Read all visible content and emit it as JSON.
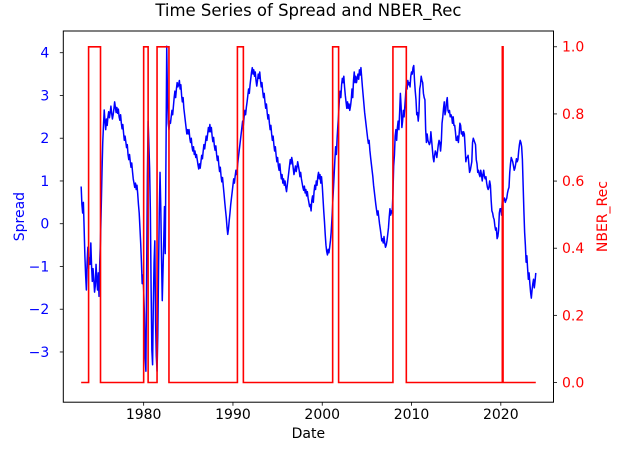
{
  "figure": {
    "background_color": "#ffffff"
  },
  "chart_data": {
    "type": "line",
    "title": "Time Series of Spread and NBER_Rec",
    "xlabel": "Date",
    "ylabel_left": "Spread",
    "ylabel_right": "NBER_Rec",
    "grid": false,
    "legend": "none",
    "colors": {
      "spread_line": "#0000ff",
      "nber_line": "#ff0000",
      "left_tick_text": "#0000ff",
      "right_tick_text": "#ff0000",
      "axis_text": "#000000",
      "spine": "#000000"
    },
    "xlim": [
      1971.0,
      2025.9
    ],
    "ylim_left": [
      -4.175,
      4.508
    ],
    "ylim_right": [
      -0.0587,
      1.047
    ],
    "x_ticks": {
      "values": [
        1980,
        1990,
        2000,
        2010,
        2020
      ],
      "labels": [
        "1980",
        "1990",
        "2000",
        "2010",
        "2020"
      ]
    },
    "y_ticks_left": {
      "values": [
        4,
        3,
        2,
        1,
        0,
        -1,
        -2,
        -3
      ],
      "labels": [
        "4",
        "3",
        "2",
        "1",
        "0",
        "−1",
        "−2",
        "−3"
      ]
    },
    "y_ticks_right": {
      "values": [
        1.0,
        0.8,
        0.6,
        0.4,
        0.2,
        0.0
      ],
      "labels": [
        "1.0",
        "0.8",
        "0.6",
        "0.4",
        "0.2",
        "0.0"
      ]
    },
    "series": [
      {
        "name": "Spread",
        "y_axis": "left",
        "color": "#0000ff",
        "frequency": "monthly",
        "start_year": 1973.0,
        "end_year": 2023.9167,
        "values": [
          0.87,
          0.45,
          0.25,
          0.5,
          -0.1,
          -0.75,
          -1.2,
          -1.55,
          -0.9,
          -0.55,
          -1.05,
          -0.8,
          -0.95,
          -0.45,
          -1.0,
          -1.35,
          -1.05,
          -1.3,
          -1.6,
          -1.45,
          -0.95,
          -1.3,
          -1.55,
          -1.15,
          -1.7,
          -0.9,
          -0.4,
          0.4,
          1.2,
          1.9,
          2.3,
          2.66,
          2.4,
          2.2,
          2.45,
          2.3,
          2.5,
          2.62,
          2.48,
          2.6,
          2.75,
          2.58,
          2.45,
          2.55,
          2.68,
          2.85,
          2.72,
          2.6,
          2.72,
          2.58,
          2.68,
          2.5,
          2.42,
          2.55,
          2.35,
          2.22,
          2.32,
          2.12,
          1.95,
          2.05,
          1.92,
          1.78,
          1.85,
          1.62,
          1.5,
          1.62,
          1.45,
          1.32,
          1.42,
          1.22,
          1.05,
          0.95,
          0.85,
          0.95,
          0.8,
          0.9,
          0.7,
          0.45,
          0.25,
          -0.1,
          -0.45,
          -0.9,
          -1.4,
          -1.2,
          -1.55,
          -2.1,
          -3.1,
          -3.45,
          -1.2,
          1.1,
          2.4,
          1.85,
          1.3,
          0.3,
          -1.5,
          -2.95,
          -3.3,
          -1.9,
          -0.9,
          -0.4,
          -2.3,
          -3.1,
          -3.45,
          -2.6,
          -1.1,
          0.3,
          1.2,
          0.4,
          -0.8,
          -1.8,
          -1.1,
          -0.4,
          0.4,
          -0.7,
          1.6,
          4.15,
          3.0,
          2.35,
          2.2,
          2.4,
          2.35,
          2.5,
          2.65,
          2.55,
          2.75,
          2.95,
          3.1,
          2.95,
          3.15,
          3.3,
          3.2,
          3.25,
          3.35,
          3.15,
          3.25,
          3.0,
          2.85,
          2.95,
          2.7,
          2.55,
          2.4,
          2.25,
          2.1,
          2.2,
          2.1,
          2.2,
          2.0,
          1.9,
          2.0,
          1.8,
          1.7,
          1.8,
          1.62,
          1.7,
          1.55,
          1.62,
          1.5,
          1.38,
          1.28,
          1.4,
          1.3,
          1.45,
          1.6,
          1.52,
          1.7,
          1.85,
          1.75,
          1.9,
          2.05,
          1.95,
          2.1,
          2.25,
          2.15,
          2.32,
          2.15,
          2.25,
          2.05,
          1.92,
          2.02,
          1.82,
          1.72,
          1.82,
          1.62,
          1.48,
          1.58,
          1.38,
          1.22,
          1.32,
          1.12,
          0.98,
          1.08,
          0.88,
          0.7,
          0.5,
          0.32,
          0.15,
          -0.08,
          -0.25,
          -0.12,
          0.08,
          0.25,
          0.45,
          0.6,
          0.75,
          0.9,
          1.05,
          0.95,
          1.12,
          1.25,
          1.15,
          1.32,
          1.5,
          1.65,
          1.8,
          1.95,
          2.1,
          2.25,
          2.4,
          2.3,
          2.5,
          2.65,
          2.55,
          2.72,
          2.85,
          3.0,
          3.15,
          3.05,
          3.25,
          3.4,
          3.55,
          3.65,
          3.5,
          3.6,
          3.45,
          3.55,
          3.35,
          3.22,
          3.35,
          3.5,
          3.4,
          3.55,
          3.35,
          3.2,
          3.3,
          3.1,
          2.95,
          3.05,
          2.85,
          2.7,
          2.8,
          2.6,
          2.45,
          2.55,
          2.35,
          2.2,
          2.3,
          2.1,
          1.95,
          2.05,
          1.85,
          1.7,
          1.8,
          1.6,
          1.45,
          1.55,
          1.35,
          1.25,
          1.4,
          1.2,
          1.05,
          1.15,
          0.95,
          1.05,
          0.9,
          1.0,
          0.85,
          0.75,
          0.9,
          1.05,
          1.2,
          1.35,
          1.5,
          1.4,
          1.55,
          1.45,
          1.3,
          1.15,
          1.25,
          1.35,
          1.22,
          1.32,
          1.45,
          1.35,
          1.25,
          1.1,
          1.2,
          1.05,
          0.95,
          0.85,
          0.78,
          0.88,
          0.72,
          0.8,
          0.65,
          0.75,
          0.6,
          0.5,
          0.4,
          0.45,
          0.3,
          0.55,
          0.65,
          0.5,
          0.75,
          0.9,
          0.8,
          1.0,
          0.9,
          1.1,
          1.2,
          1.05,
          1.15,
          0.95,
          1.1,
          0.9,
          0.6,
          0.3,
          0.05,
          -0.25,
          -0.5,
          -0.65,
          -0.73,
          -0.6,
          -0.68,
          -0.55,
          -0.4,
          -0.2,
          0.1,
          0.45,
          0.8,
          1.15,
          1.5,
          1.8,
          1.62,
          2.0,
          2.3,
          2.55,
          2.9,
          3.1,
          2.95,
          3.25,
          3.4,
          3.3,
          3.45,
          3.2,
          3.0,
          2.85,
          2.7,
          2.85,
          2.7,
          2.8,
          2.65,
          2.75,
          2.9,
          3.15,
          2.95,
          3.35,
          3.55,
          3.3,
          3.45,
          3.3,
          3.4,
          3.5,
          3.38,
          3.6,
          3.48,
          3.65,
          3.42,
          3.2,
          3.0,
          2.8,
          2.6,
          2.45,
          2.3,
          2.15,
          2.0,
          1.88,
          1.95,
          1.72,
          1.55,
          1.4,
          1.25,
          1.1,
          0.9,
          0.75,
          0.6,
          0.45,
          0.32,
          0.2,
          0.3,
          0.15,
          0.0,
          -0.12,
          -0.25,
          -0.4,
          -0.35,
          -0.45,
          -0.3,
          -0.45,
          -0.55,
          -0.5,
          -0.4,
          -0.25,
          -0.1,
          0.15,
          0.35,
          0.2,
          0.3,
          0.25,
          0.7,
          1.35,
          1.6,
          2.05,
          2.2,
          1.95,
          2.25,
          2.4,
          2.2,
          2.6,
          3.05,
          2.75,
          2.25,
          2.4,
          2.65,
          2.5,
          2.75,
          3.0,
          3.3,
          3.15,
          3.35,
          3.25,
          3.3,
          3.2,
          3.45,
          3.55,
          3.5,
          3.65,
          3.7,
          3.35,
          3.1,
          2.9,
          2.55,
          2.6,
          2.4,
          2.6,
          3.15,
          3.25,
          3.45,
          3.35,
          3.3,
          3.05,
          2.95,
          2.9,
          2.2,
          1.9,
          2.1,
          1.95,
          1.9,
          1.85,
          1.9,
          2.15,
          1.95,
          1.75,
          1.55,
          1.45,
          1.6,
          1.7,
          1.65,
          1.55,
          1.7,
          1.85,
          1.95,
          1.9,
          1.7,
          1.9,
          2.35,
          2.5,
          2.7,
          2.85,
          2.55,
          2.65,
          2.85,
          2.95,
          2.65,
          2.6,
          2.65,
          2.5,
          2.55,
          2.5,
          2.35,
          2.5,
          2.3,
          2.3,
          2.15,
          1.95,
          1.95,
          2.05,
          1.9,
          2.1,
          2.35,
          2.3,
          2.1,
          2.15,
          2.05,
          2.15,
          2.1,
          1.8,
          1.45,
          1.55,
          1.55,
          1.6,
          1.4,
          1.2,
          1.25,
          1.35,
          1.45,
          1.9,
          2.0,
          1.95,
          1.9,
          1.85,
          1.5,
          1.4,
          1.2,
          1.25,
          1.15,
          1.1,
          1.25,
          1.15,
          1.0,
          1.15,
          1.25,
          1.1,
          1.05,
          1.1,
          0.95,
          0.85,
          0.8,
          0.85,
          1.0,
          0.9,
          0.55,
          0.3,
          0.25,
          0.15,
          0.1,
          -0.05,
          -0.15,
          -0.1,
          -0.35,
          -0.3,
          -0.15,
          0.25,
          0.35,
          0.35,
          0.2,
          0.58,
          0.52,
          0.55,
          0.6,
          0.5,
          0.55,
          0.6,
          0.72,
          0.8,
          0.85,
          1.2,
          1.4,
          1.55,
          1.5,
          1.45,
          1.35,
          1.25,
          1.3,
          1.4,
          1.52,
          1.45,
          1.5,
          1.7,
          1.85,
          1.95,
          1.9,
          1.8,
          1.5,
          0.9,
          0.3,
          -0.2,
          -0.5,
          -0.9,
          -0.75,
          -1.05,
          -1.3,
          -1.15,
          -1.4,
          -1.6,
          -1.74,
          -1.55,
          -1.4,
          -1.3,
          -1.5,
          -1.35,
          -1.15
        ]
      },
      {
        "name": "NBER_Rec",
        "y_axis": "right",
        "color": "#ff0000",
        "low_value": 0,
        "high_value": 1,
        "x_start": 1973.0,
        "x_end": 2023.9167,
        "recession_intervals": [
          [
            1973.833,
            1975.167
          ],
          [
            1980.0,
            1980.5
          ],
          [
            1981.5,
            1982.833
          ],
          [
            1990.5,
            1991.167
          ],
          [
            2001.167,
            2001.833
          ],
          [
            2007.917,
            2009.417
          ],
          [
            2020.167,
            2020.25
          ]
        ]
      }
    ]
  }
}
